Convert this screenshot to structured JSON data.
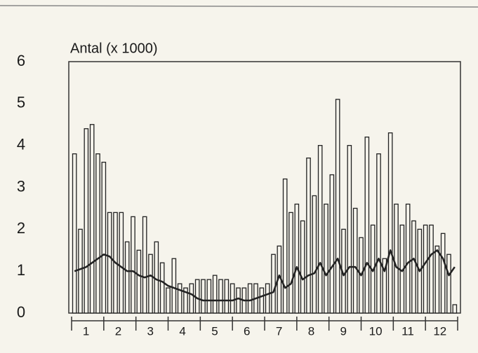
{
  "chart_data": {
    "type": "bar",
    "y_label": "Antal (x 1000)",
    "month_labels": [
      "1",
      "2",
      "3",
      "4",
      "5",
      "6",
      "7",
      "8",
      "9",
      "10",
      "11",
      "12"
    ],
    "categories": [
      null,
      null,
      null,
      null,
      null,
      null,
      null,
      null,
      null,
      null,
      null,
      null,
      null,
      null,
      null,
      null,
      null,
      null,
      null,
      null,
      null,
      null,
      null,
      null,
      null,
      null,
      null,
      null,
      null,
      null,
      null,
      null,
      null,
      null,
      null,
      null,
      null,
      null,
      null,
      null,
      null,
      null,
      null,
      null,
      null,
      null,
      null,
      null,
      null,
      null,
      null,
      null,
      null,
      null,
      null,
      null,
      null,
      null,
      null,
      null,
      null,
      null,
      null,
      null,
      null,
      null
    ],
    "series": [
      {
        "type": "bar",
        "color": "#222222",
        "values": [
          3.8,
          2.0,
          4.4,
          4.5,
          3.8,
          3.6,
          2.4,
          2.4,
          2.4,
          1.7,
          2.3,
          1.5,
          2.3,
          1.4,
          1.7,
          1.2,
          0.6,
          1.3,
          0.7,
          0.6,
          0.7,
          0.8,
          0.8,
          0.8,
          0.9,
          0.8,
          0.8,
          0.7,
          0.6,
          0.6,
          0.7,
          0.7,
          0.6,
          0.7,
          1.4,
          1.6,
          3.2,
          2.4,
          2.6,
          2.2,
          3.7,
          2.8,
          4.0,
          2.6,
          3.3,
          5.1,
          2.0,
          4.0,
          2.5,
          1.8,
          4.2,
          2.1,
          3.8,
          1.3,
          4.3,
          2.6,
          2.1,
          2.6,
          2.2,
          2.0,
          2.1,
          2.1,
          1.6,
          1.9,
          1.4,
          0.2
        ]
      },
      {
        "type": "line",
        "color": "#222222",
        "values": [
          1.0,
          1.05,
          1.1,
          1.2,
          1.3,
          1.4,
          1.35,
          1.2,
          1.1,
          1.0,
          1.0,
          0.9,
          0.85,
          0.9,
          0.8,
          0.75,
          0.65,
          0.6,
          0.55,
          0.5,
          0.45,
          0.35,
          0.3,
          0.3,
          0.3,
          0.3,
          0.3,
          0.3,
          0.35,
          0.3,
          0.3,
          0.35,
          0.4,
          0.45,
          0.5,
          0.9,
          0.6,
          0.7,
          1.1,
          0.8,
          0.9,
          0.95,
          1.2,
          0.9,
          1.1,
          1.3,
          0.9,
          1.1,
          1.1,
          0.9,
          1.2,
          1.0,
          1.3,
          1.0,
          1.5,
          1.1,
          1.0,
          1.2,
          1.3,
          1.0,
          1.2,
          1.4,
          1.5,
          1.3,
          0.9,
          1.1
        ]
      }
    ],
    "ylim": [
      0,
      6
    ],
    "yticks": [
      0,
      1,
      2,
      3,
      4,
      5,
      6
    ],
    "grid": false
  }
}
